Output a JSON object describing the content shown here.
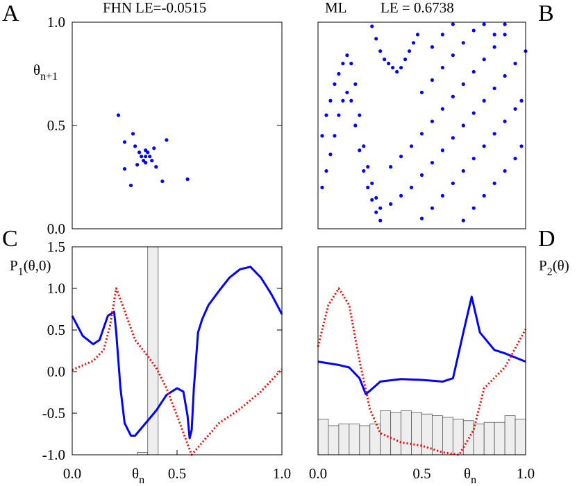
{
  "chart_data": [
    {
      "type": "scatter",
      "panel": "A",
      "notes": [
        "FHN",
        "LE=-0.0515"
      ],
      "y_label": [
        {
          "text": "θ"
        },
        {
          "sub": "n+1"
        }
      ],
      "xlim": [
        0,
        1
      ],
      "ylim": [
        0,
        1
      ],
      "yticks": [
        {
          "value": 0,
          "label": "0.0"
        },
        0.5,
        {
          "value": 1,
          "label": "1.0"
        }
      ],
      "series": [
        {
          "color": "#0000ff",
          "x": [
            0.22,
            0.29,
            0.45,
            0.25,
            0.25,
            0.28,
            0.43,
            0.55,
            0.35,
            0.33,
            0.37,
            0.35,
            0.35,
            0.32,
            0.38,
            0.34,
            0.36,
            0.3,
            0.4,
            0.31,
            0.39
          ],
          "values": [
            0.55,
            0.46,
            0.43,
            0.42,
            0.29,
            0.21,
            0.23,
            0.24,
            0.35,
            0.35,
            0.35,
            0.32,
            0.38,
            0.37,
            0.33,
            0.33,
            0.37,
            0.4,
            0.3,
            0.31,
            0.39
          ]
        }
      ]
    },
    {
      "type": "scatter",
      "panel": "B",
      "notes": [
        "ML",
        "LE = 0.6738"
      ],
      "xlim": [
        0,
        1
      ],
      "ylim": [
        0,
        1
      ],
      "series": [
        {
          "color": "#0000ff",
          "x": [
            0.02,
            0.04,
            0.06,
            0.08,
            0.1,
            0.12,
            0.14,
            0.16,
            0.18,
            0.2,
            0.22,
            0.24,
            0.26,
            0.28,
            0.3,
            0.02,
            0.04,
            0.06,
            0.08,
            0.1,
            0.12,
            0.14,
            0.16,
            0.18,
            0.2,
            0.22,
            0.24,
            0.26,
            0.28,
            0.3,
            0.26,
            0.28,
            0.3,
            0.32,
            0.34,
            0.36,
            0.38,
            0.4,
            0.42,
            0.44,
            0.46,
            0.48,
            0.35,
            0.4,
            0.45,
            0.5,
            0.55,
            0.6,
            0.65,
            0.7,
            0.75,
            0.8,
            0.85,
            0.9,
            0.35,
            0.4,
            0.45,
            0.5,
            0.55,
            0.6,
            0.65,
            0.7,
            0.75,
            0.8,
            0.85,
            0.9,
            0.95,
            1.0,
            0.5,
            0.55,
            0.6,
            0.65,
            0.7,
            0.75,
            0.8,
            0.85,
            0.9,
            0.95,
            0.98,
            0.7,
            0.75,
            0.8,
            0.85,
            0.9,
            0.95,
            0.98,
            0.5,
            0.55,
            0.6,
            0.65,
            0.7,
            0.75,
            0.55,
            0.6,
            0.65,
            0.8,
            0.85,
            0.9
          ],
          "values": [
            0.45,
            0.55,
            0.62,
            0.7,
            0.75,
            0.8,
            0.84,
            0.8,
            0.7,
            0.55,
            0.4,
            0.3,
            0.22,
            0.15,
            0.1,
            0.2,
            0.28,
            0.36,
            0.45,
            0.55,
            0.62,
            0.66,
            0.62,
            0.5,
            0.38,
            0.28,
            0.2,
            0.14,
            0.08,
            0.04,
            0.98,
            0.92,
            0.86,
            0.82,
            0.8,
            0.78,
            0.76,
            0.78,
            0.82,
            0.86,
            0.9,
            0.94,
            0.3,
            0.35,
            0.4,
            0.46,
            0.52,
            0.58,
            0.64,
            0.7,
            0.76,
            0.82,
            0.88,
            0.94,
            0.12,
            0.16,
            0.2,
            0.26,
            0.32,
            0.38,
            0.44,
            0.5,
            0.56,
            0.62,
            0.68,
            0.74,
            0.8,
            0.86,
            0.05,
            0.1,
            0.16,
            0.22,
            0.28,
            0.34,
            0.4,
            0.46,
            0.52,
            0.58,
            0.62,
            0.04,
            0.1,
            0.16,
            0.22,
            0.28,
            0.34,
            0.4,
            0.66,
            0.72,
            0.78,
            0.84,
            0.9,
            0.96,
            0.88,
            0.94,
            0.99,
            0.99,
            0.94,
            0.99
          ]
        }
      ]
    },
    {
      "type": "line",
      "panel": "C",
      "y_label": [
        {
          "text": "P"
        },
        {
          "sub": "1"
        },
        {
          "text": "(θ,0)"
        }
      ],
      "x_label": [
        {
          "text": "θ"
        },
        {
          "sub": "n"
        }
      ],
      "xlim": [
        0,
        1
      ],
      "ylim": [
        -1,
        1.5
      ],
      "xticks": [
        {
          "value": 0,
          "label": "0.0"
        },
        0.5,
        {
          "value": 1,
          "label": "1.0"
        }
      ],
      "yticks": [
        {
          "value": -1,
          "label": "-1.0"
        },
        -0.5,
        {
          "value": 0,
          "label": "0.0"
        },
        0.5,
        {
          "value": 1,
          "label": "1.0"
        },
        1.5
      ],
      "hist": {
        "color": "#eeeeee",
        "bins": [
          0.31,
          0.36,
          0.41
        ],
        "values": [
          -0.97,
          1.5
        ]
      },
      "series": [
        {
          "color": "#0000ff",
          "dash": false,
          "x": [
            0,
            0.05,
            0.1,
            0.13,
            0.17,
            0.2,
            0.21,
            0.23,
            0.25,
            0.28,
            0.3,
            0.35,
            0.4,
            0.45,
            0.5,
            0.53,
            0.55,
            0.56,
            0.57,
            0.58,
            0.6,
            0.62,
            0.65,
            0.7,
            0.75,
            0.8,
            0.85,
            0.9,
            0.95,
            1.0
          ],
          "values": [
            0.67,
            0.43,
            0.33,
            0.38,
            0.67,
            0.72,
            0.47,
            -0.2,
            -0.62,
            -0.77,
            -0.77,
            -0.62,
            -0.47,
            -0.28,
            -0.2,
            -0.24,
            -0.53,
            -0.8,
            -0.7,
            -0.2,
            0.47,
            0.63,
            0.8,
            0.97,
            1.13,
            1.23,
            1.26,
            1.13,
            0.93,
            0.69
          ]
        },
        {
          "color": "#ff0000",
          "dash": true,
          "x": [
            0,
            0.1,
            0.15,
            0.18,
            0.21,
            0.24,
            0.3,
            0.35,
            0.4,
            0.45,
            0.5,
            0.55,
            0.57,
            0.6,
            0.7,
            0.8,
            0.9,
            1.0
          ],
          "values": [
            0.02,
            0.13,
            0.26,
            0.55,
            1.0,
            0.8,
            0.38,
            0.22,
            0.05,
            -0.2,
            -0.53,
            -0.87,
            -1.0,
            -0.91,
            -0.62,
            -0.45,
            -0.24,
            0.03
          ]
        }
      ]
    },
    {
      "type": "line",
      "panel": "D",
      "y_label": [
        {
          "text": "P"
        },
        {
          "sub": "2"
        },
        {
          "text": "(θ)"
        }
      ],
      "x_label": [
        {
          "text": "θ"
        },
        {
          "sub": "n"
        }
      ],
      "xlim": [
        0,
        1
      ],
      "ylim": [
        -1,
        1.5
      ],
      "xticks": [
        {
          "value": 0,
          "label": "0.0"
        },
        0.5,
        {
          "value": 1,
          "label": "1.0"
        }
      ],
      "hist": {
        "color": "#eeeeee",
        "bins": [
          0,
          0.05,
          0.1,
          0.15,
          0.2,
          0.25,
          0.3,
          0.35,
          0.4,
          0.45,
          0.5,
          0.55,
          0.6,
          0.65,
          0.7,
          0.75,
          0.8,
          0.85,
          0.9,
          0.95,
          1.0
        ],
        "values": [
          -0.57,
          -0.65,
          -0.63,
          -0.63,
          -0.65,
          -0.63,
          -0.47,
          -0.49,
          -0.47,
          -0.49,
          -0.51,
          -0.53,
          -0.55,
          -0.57,
          -0.59,
          -0.63,
          -0.61,
          -0.61,
          -0.53,
          -0.57
        ]
      },
      "series": [
        {
          "color": "#0000ff",
          "dash": false,
          "x": [
            0,
            0.1,
            0.15,
            0.2,
            0.23,
            0.25,
            0.3,
            0.4,
            0.5,
            0.6,
            0.65,
            0.7,
            0.74,
            0.78,
            0.85,
            0.9,
            1.0
          ],
          "values": [
            0.12,
            0.08,
            0.05,
            -0.08,
            -0.27,
            -0.23,
            -0.12,
            -0.09,
            -0.1,
            -0.12,
            -0.08,
            0.47,
            0.9,
            0.47,
            0.26,
            0.22,
            0.12
          ]
        },
        {
          "color": "#ff0000",
          "dash": true,
          "x": [
            0,
            0.05,
            0.1,
            0.15,
            0.2,
            0.25,
            0.3,
            0.4,
            0.5,
            0.6,
            0.68,
            0.75,
            0.8,
            0.9,
            1.0
          ],
          "values": [
            0.3,
            0.8,
            1.0,
            0.8,
            0.13,
            -0.45,
            -0.74,
            -0.85,
            -0.89,
            -0.97,
            -1.0,
            -0.7,
            -0.2,
            0.05,
            0.51
          ]
        }
      ]
    }
  ]
}
